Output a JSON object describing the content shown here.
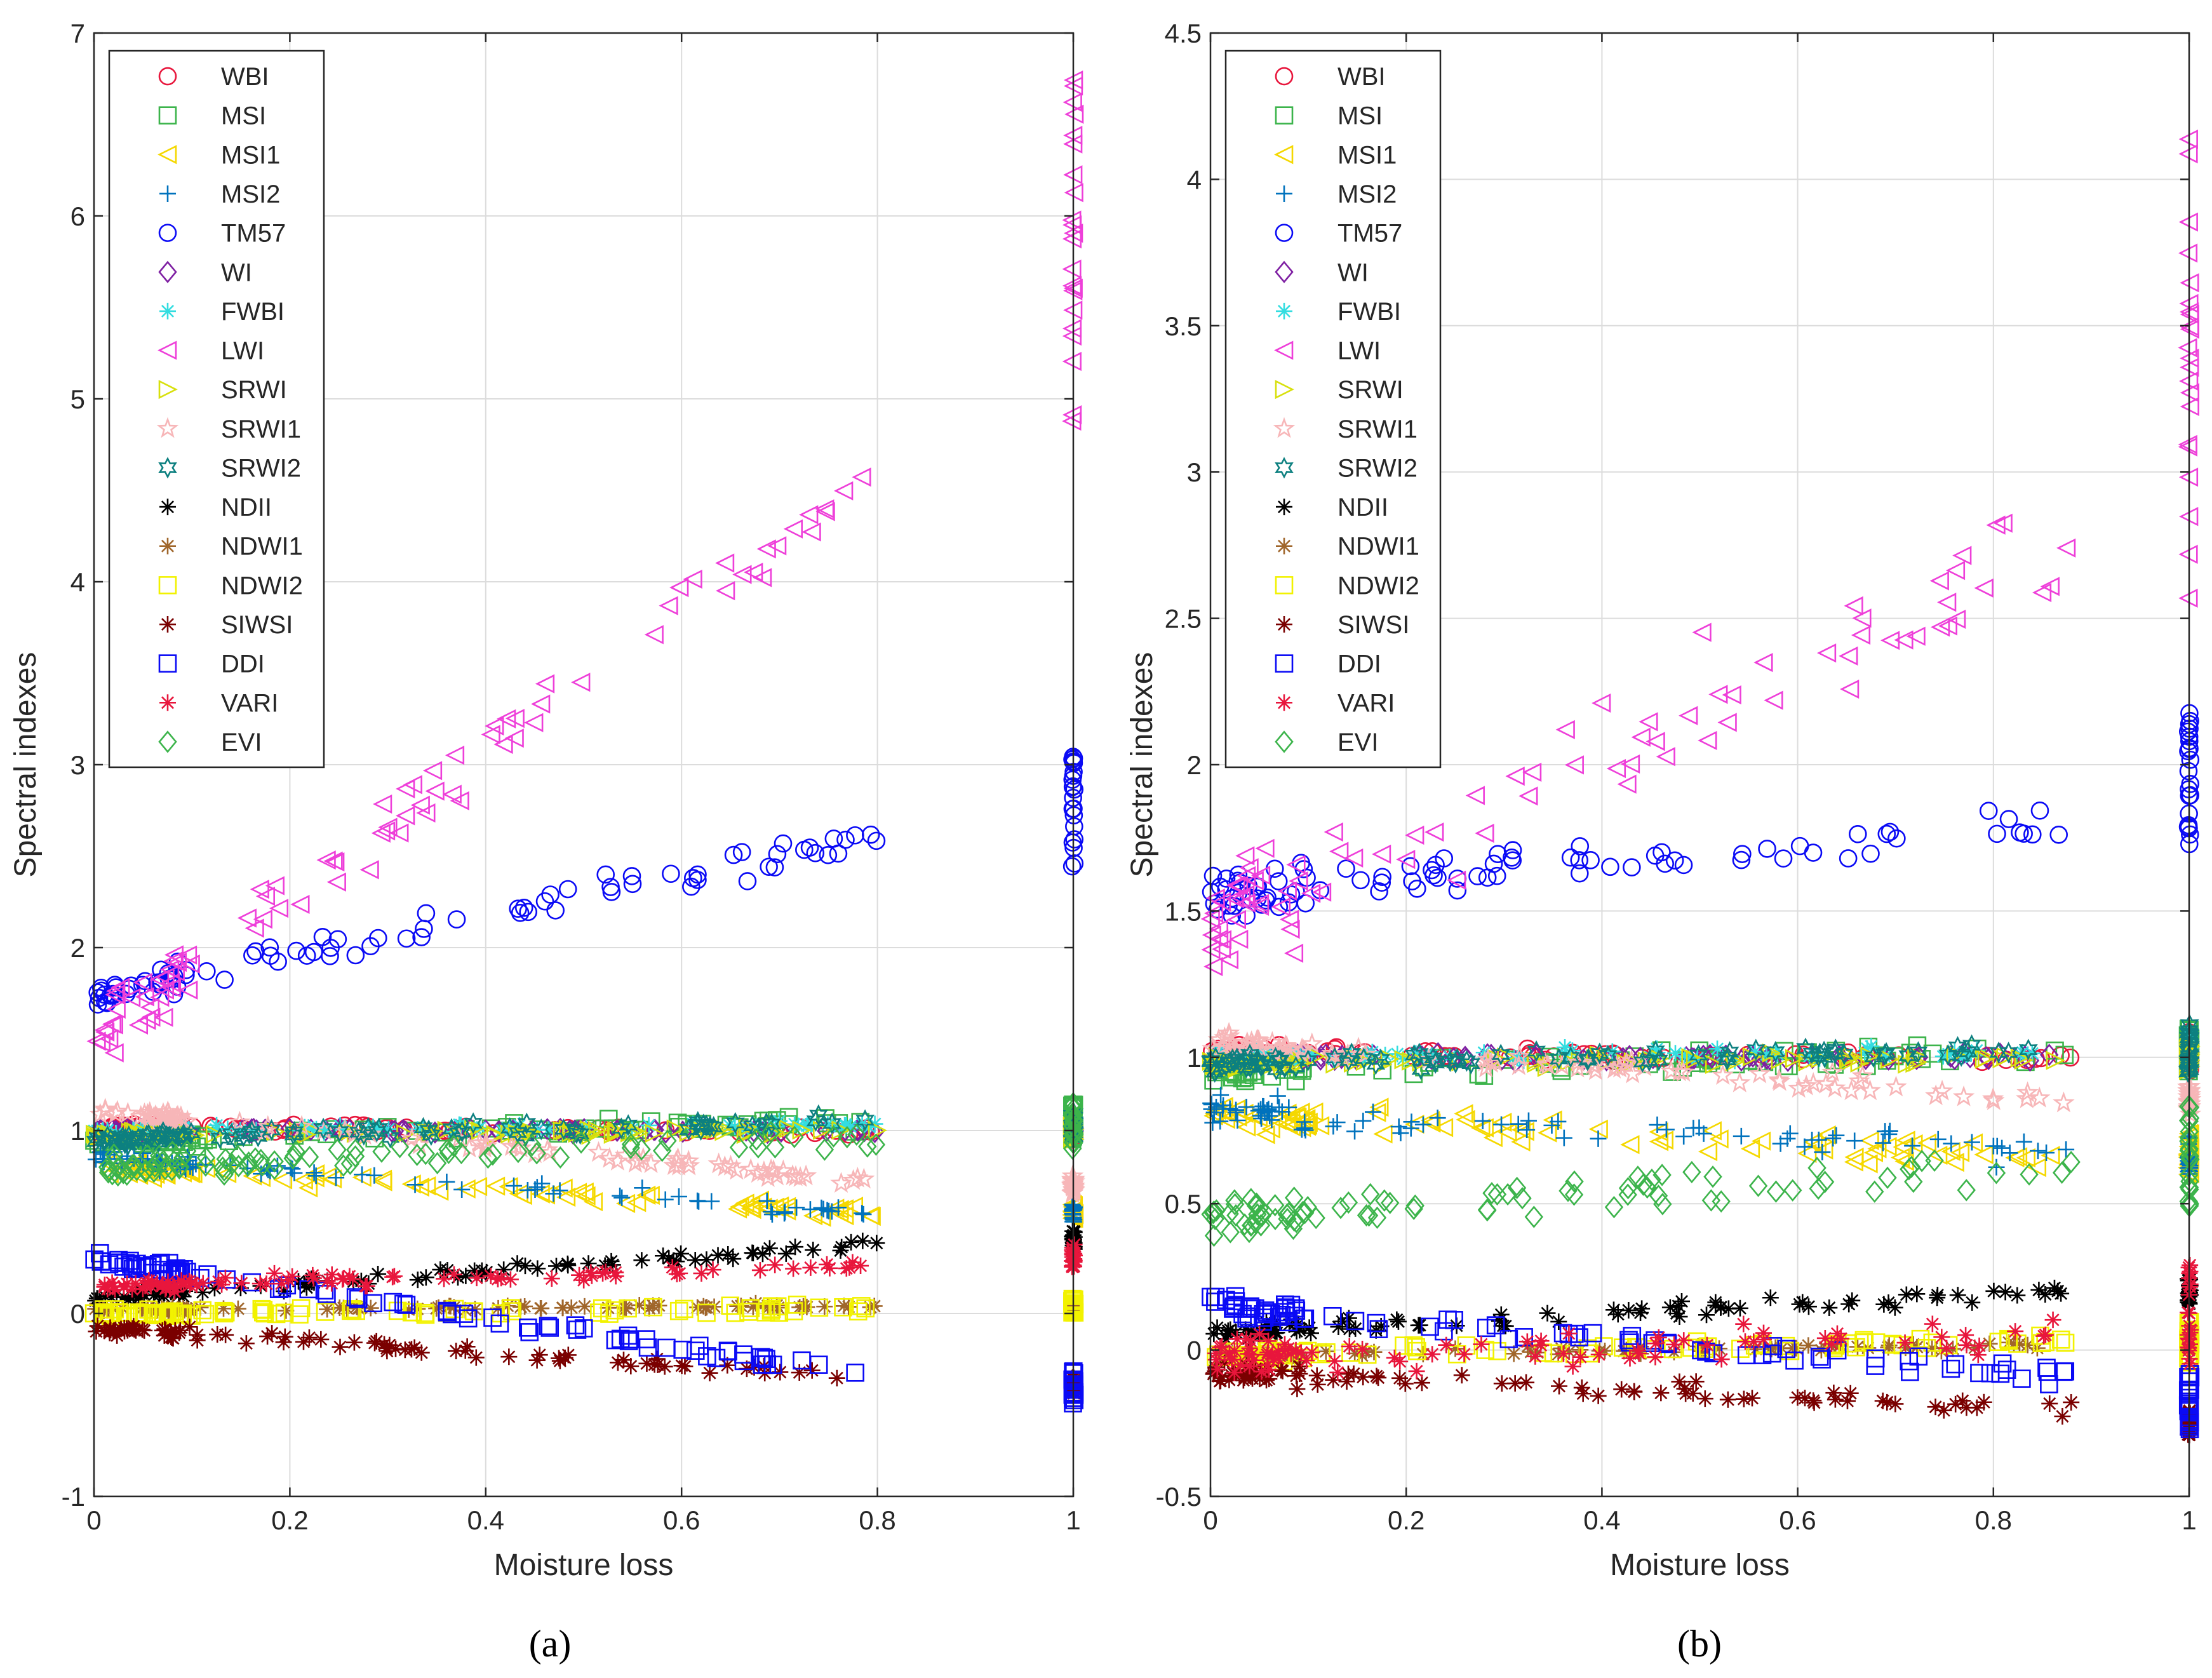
{
  "figure": {
    "captions": [
      "(a)",
      "(b)"
    ]
  },
  "series_styles": [
    {
      "name": "WBI",
      "color": "#e8163c",
      "marker": "circle"
    },
    {
      "name": "MSI",
      "color": "#3cb44b",
      "marker": "square"
    },
    {
      "name": "MSI1",
      "color": "#f5d800",
      "marker": "triangle-left"
    },
    {
      "name": "MSI2",
      "color": "#0072bd",
      "marker": "plus"
    },
    {
      "name": "TM57",
      "color": "#0a0af5",
      "marker": "circle"
    },
    {
      "name": "WI",
      "color": "#7e1fa2",
      "marker": "diamond"
    },
    {
      "name": "FWBI",
      "color": "#33dde0",
      "marker": "asterisk"
    },
    {
      "name": "LWI",
      "color": "#ee3fd9",
      "marker": "triangle-left"
    },
    {
      "name": "SRWI",
      "color": "#d8e00c",
      "marker": "triangle-right"
    },
    {
      "name": "SRWI1",
      "color": "#f7b6b8",
      "marker": "pentagram"
    },
    {
      "name": "SRWI2",
      "color": "#0d8080",
      "marker": "hexagram"
    },
    {
      "name": "NDII",
      "color": "#000000",
      "marker": "asterisk"
    },
    {
      "name": "NDWI1",
      "color": "#a0662b",
      "marker": "asterisk"
    },
    {
      "name": "NDWI2",
      "color": "#f2f200",
      "marker": "square"
    },
    {
      "name": "SIWSI",
      "color": "#7a0000",
      "marker": "asterisk"
    },
    {
      "name": "DDI",
      "color": "#0a0af5",
      "marker": "square"
    },
    {
      "name": "VARI",
      "color": "#e8163c",
      "marker": "asterisk"
    },
    {
      "name": "EVI",
      "color": "#3cb44b",
      "marker": "diamond"
    }
  ],
  "chart_data": [
    {
      "type": "scatter",
      "panel": "(a)",
      "title": "",
      "xlabel": "Moisture loss",
      "ylabel": "Spectral indexes",
      "xlim": [
        0,
        1
      ],
      "ylim": [
        -1,
        7
      ],
      "xticks": [
        0,
        0.2,
        0.4,
        0.6,
        0.8,
        1
      ],
      "xtick_labels": [
        "0",
        "0.2",
        "0.4",
        "0.6",
        "0.8",
        "1"
      ],
      "yticks": [
        -1,
        0,
        1,
        2,
        3,
        4,
        5,
        6,
        7
      ],
      "ytick_labels": [
        "-1",
        "0",
        "1",
        "2",
        "3",
        "4",
        "5",
        "6",
        "7"
      ],
      "grid": true,
      "legend_position": "top-left",
      "x_max_data": 0.8,
      "series": [
        {
          "name": "WBI",
          "trend_x": [
            0,
            0.8
          ],
          "trend_y": [
            1.02,
            0.99
          ],
          "spread": 0.03,
          "end_y": [
            0.95,
            1.05
          ]
        },
        {
          "name": "MSI",
          "trend_x": [
            0,
            0.8
          ],
          "trend_y": [
            0.95,
            1.05
          ],
          "spread": 0.06,
          "end_y": [
            0.95,
            1.15
          ]
        },
        {
          "name": "MSI1",
          "trend_x": [
            0,
            0.8
          ],
          "trend_y": [
            0.8,
            0.55
          ],
          "spread": 0.06,
          "end_y": [
            0.5,
            0.6
          ]
        },
        {
          "name": "MSI2",
          "trend_x": [
            0,
            0.8
          ],
          "trend_y": [
            0.85,
            0.55
          ],
          "spread": 0.06,
          "end_y": [
            0.5,
            0.6
          ]
        },
        {
          "name": "TM57",
          "trend_x": [
            0,
            0.8
          ],
          "trend_y": [
            1.75,
            2.6
          ],
          "spread": 0.12,
          "end_y": [
            2.4,
            3.05
          ]
        },
        {
          "name": "WI",
          "trend_x": [
            0,
            0.8
          ],
          "trend_y": [
            1.0,
            1.0
          ],
          "spread": 0.02,
          "end_y": [
            0.98,
            1.02
          ]
        },
        {
          "name": "FWBI",
          "trend_x": [
            0,
            0.8
          ],
          "trend_y": [
            1.0,
            1.03
          ],
          "spread": 0.03,
          "end_y": [
            0.98,
            1.08
          ]
        },
        {
          "name": "LWI",
          "trend_x": [
            0,
            0.8
          ],
          "trend_y": [
            1.55,
            4.6
          ],
          "spread": 0.3,
          "end_y": [
            4.85,
            6.85
          ]
        },
        {
          "name": "SRWI",
          "trend_x": [
            0,
            0.8
          ],
          "trend_y": [
            0.98,
            1.0
          ],
          "spread": 0.03,
          "end_y": [
            0.95,
            1.05
          ]
        },
        {
          "name": "SRWI1",
          "trend_x": [
            0,
            0.8
          ],
          "trend_y": [
            1.1,
            0.72
          ],
          "spread": 0.05,
          "end_y": [
            0.65,
            0.75
          ]
        },
        {
          "name": "SRWI2",
          "trend_x": [
            0,
            0.8
          ],
          "trend_y": [
            0.95,
            1.05
          ],
          "spread": 0.05,
          "end_y": [
            0.95,
            1.1
          ]
        },
        {
          "name": "NDII",
          "trend_x": [
            0,
            0.8
          ],
          "trend_y": [
            0.08,
            0.38
          ],
          "spread": 0.04,
          "end_y": [
            0.35,
            0.45
          ]
        },
        {
          "name": "NDWI1",
          "trend_x": [
            0,
            0.8
          ],
          "trend_y": [
            0.02,
            0.04
          ],
          "spread": 0.02,
          "end_y": [
            0.02,
            0.06
          ]
        },
        {
          "name": "NDWI2",
          "trend_x": [
            0,
            0.8
          ],
          "trend_y": [
            0.0,
            0.03
          ],
          "spread": 0.03,
          "end_y": [
            0.0,
            0.08
          ]
        },
        {
          "name": "SIWSI",
          "trend_x": [
            0,
            0.8
          ],
          "trend_y": [
            -0.08,
            -0.35
          ],
          "spread": 0.05,
          "end_y": [
            -0.45,
            -0.35
          ]
        },
        {
          "name": "DDI",
          "trend_x": [
            0,
            0.8
          ],
          "trend_y": [
            0.3,
            -0.35
          ],
          "spread": 0.06,
          "end_y": [
            -0.5,
            -0.3
          ]
        },
        {
          "name": "VARI",
          "trend_x": [
            0,
            0.8
          ],
          "trend_y": [
            0.15,
            0.25
          ],
          "spread": 0.05,
          "end_y": [
            0.25,
            0.4
          ]
        },
        {
          "name": "EVI",
          "trend_x": [
            0,
            0.8
          ],
          "trend_y": [
            0.8,
            0.95
          ],
          "spread": 0.1,
          "end_y": [
            0.9,
            1.15
          ]
        }
      ]
    },
    {
      "type": "scatter",
      "panel": "(b)",
      "title": "",
      "xlabel": "Moisture loss",
      "ylabel": "Spectral indexes",
      "xlim": [
        0,
        1
      ],
      "ylim": [
        -0.5,
        4.5
      ],
      "xticks": [
        0,
        0.2,
        0.4,
        0.6,
        0.8,
        1
      ],
      "xtick_labels": [
        "0",
        "0.2",
        "0.4",
        "0.6",
        "0.8",
        "1"
      ],
      "yticks": [
        -0.5,
        0,
        0.5,
        1,
        1.5,
        2,
        2.5,
        3,
        3.5,
        4,
        4.5
      ],
      "ytick_labels": [
        "-0.5",
        "0",
        "0.5",
        "1",
        "1.5",
        "2",
        "2.5",
        "3",
        "3.5",
        "4",
        "4.5"
      ],
      "grid": true,
      "legend_position": "top-left",
      "x_max_data": 0.88,
      "series": [
        {
          "name": "WBI",
          "trend_x": [
            0,
            0.88
          ],
          "trend_y": [
            1.02,
            1.0
          ],
          "spread": 0.03,
          "end_y": [
            0.95,
            1.1
          ]
        },
        {
          "name": "MSI",
          "trend_x": [
            0,
            0.88
          ],
          "trend_y": [
            0.95,
            1.02
          ],
          "spread": 0.05,
          "end_y": [
            0.95,
            1.1
          ]
        },
        {
          "name": "MSI1",
          "trend_x": [
            0,
            0.88
          ],
          "trend_y": [
            0.8,
            0.65
          ],
          "spread": 0.07,
          "end_y": [
            0.6,
            0.75
          ]
        },
        {
          "name": "MSI2",
          "trend_x": [
            0,
            0.88
          ],
          "trend_y": [
            0.82,
            0.68
          ],
          "spread": 0.07,
          "end_y": [
            0.6,
            0.75
          ]
        },
        {
          "name": "TM57",
          "trend_x": [
            0,
            0.88
          ],
          "trend_y": [
            1.55,
            1.8
          ],
          "spread": 0.1,
          "end_y": [
            1.72,
            2.2
          ]
        },
        {
          "name": "WI",
          "trend_x": [
            0,
            0.88
          ],
          "trend_y": [
            1.0,
            1.0
          ],
          "spread": 0.02,
          "end_y": [
            0.98,
            1.02
          ]
        },
        {
          "name": "FWBI",
          "trend_x": [
            0,
            0.88
          ],
          "trend_y": [
            1.0,
            1.02
          ],
          "spread": 0.03,
          "end_y": [
            0.98,
            1.08
          ]
        },
        {
          "name": "LWI",
          "trend_x": [
            0,
            0.88
          ],
          "trend_y": [
            1.45,
            2.75
          ],
          "spread": 0.28,
          "end_y": [
            2.55,
            4.22
          ]
        },
        {
          "name": "SRWI",
          "trend_x": [
            0,
            0.88
          ],
          "trend_y": [
            0.98,
            1.0
          ],
          "spread": 0.03,
          "end_y": [
            0.95,
            1.05
          ]
        },
        {
          "name": "SRWI1",
          "trend_x": [
            0,
            0.88
          ],
          "trend_y": [
            1.05,
            0.85
          ],
          "spread": 0.05,
          "end_y": [
            0.8,
            0.9
          ]
        },
        {
          "name": "SRWI2",
          "trend_x": [
            0,
            0.88
          ],
          "trend_y": [
            0.98,
            1.03
          ],
          "spread": 0.04,
          "end_y": [
            0.95,
            1.12
          ]
        },
        {
          "name": "NDII",
          "trend_x": [
            0,
            0.88
          ],
          "trend_y": [
            0.06,
            0.2
          ],
          "spread": 0.04,
          "end_y": [
            0.15,
            0.25
          ]
        },
        {
          "name": "NDWI1",
          "trend_x": [
            0,
            0.88
          ],
          "trend_y": [
            -0.02,
            0.02
          ],
          "spread": 0.02,
          "end_y": [
            0.0,
            0.05
          ]
        },
        {
          "name": "NDWI2",
          "trend_x": [
            0,
            0.88
          ],
          "trend_y": [
            -0.02,
            0.03
          ],
          "spread": 0.03,
          "end_y": [
            -0.05,
            0.1
          ]
        },
        {
          "name": "SIWSI",
          "trend_x": [
            0,
            0.88
          ],
          "trend_y": [
            -0.08,
            -0.2
          ],
          "spread": 0.05,
          "end_y": [
            -0.3,
            -0.2
          ]
        },
        {
          "name": "DDI",
          "trend_x": [
            0,
            0.88
          ],
          "trend_y": [
            0.15,
            -0.1
          ],
          "spread": 0.05,
          "end_y": [
            -0.3,
            -0.05
          ]
        },
        {
          "name": "VARI",
          "trend_x": [
            0,
            0.88
          ],
          "trend_y": [
            -0.02,
            0.05
          ],
          "spread": 0.09,
          "end_y": [
            -0.05,
            0.3
          ]
        },
        {
          "name": "EVI",
          "trend_x": [
            0,
            0.88
          ],
          "trend_y": [
            0.45,
            0.62
          ],
          "spread": 0.1,
          "end_y": [
            0.45,
            0.85
          ]
        }
      ]
    }
  ]
}
